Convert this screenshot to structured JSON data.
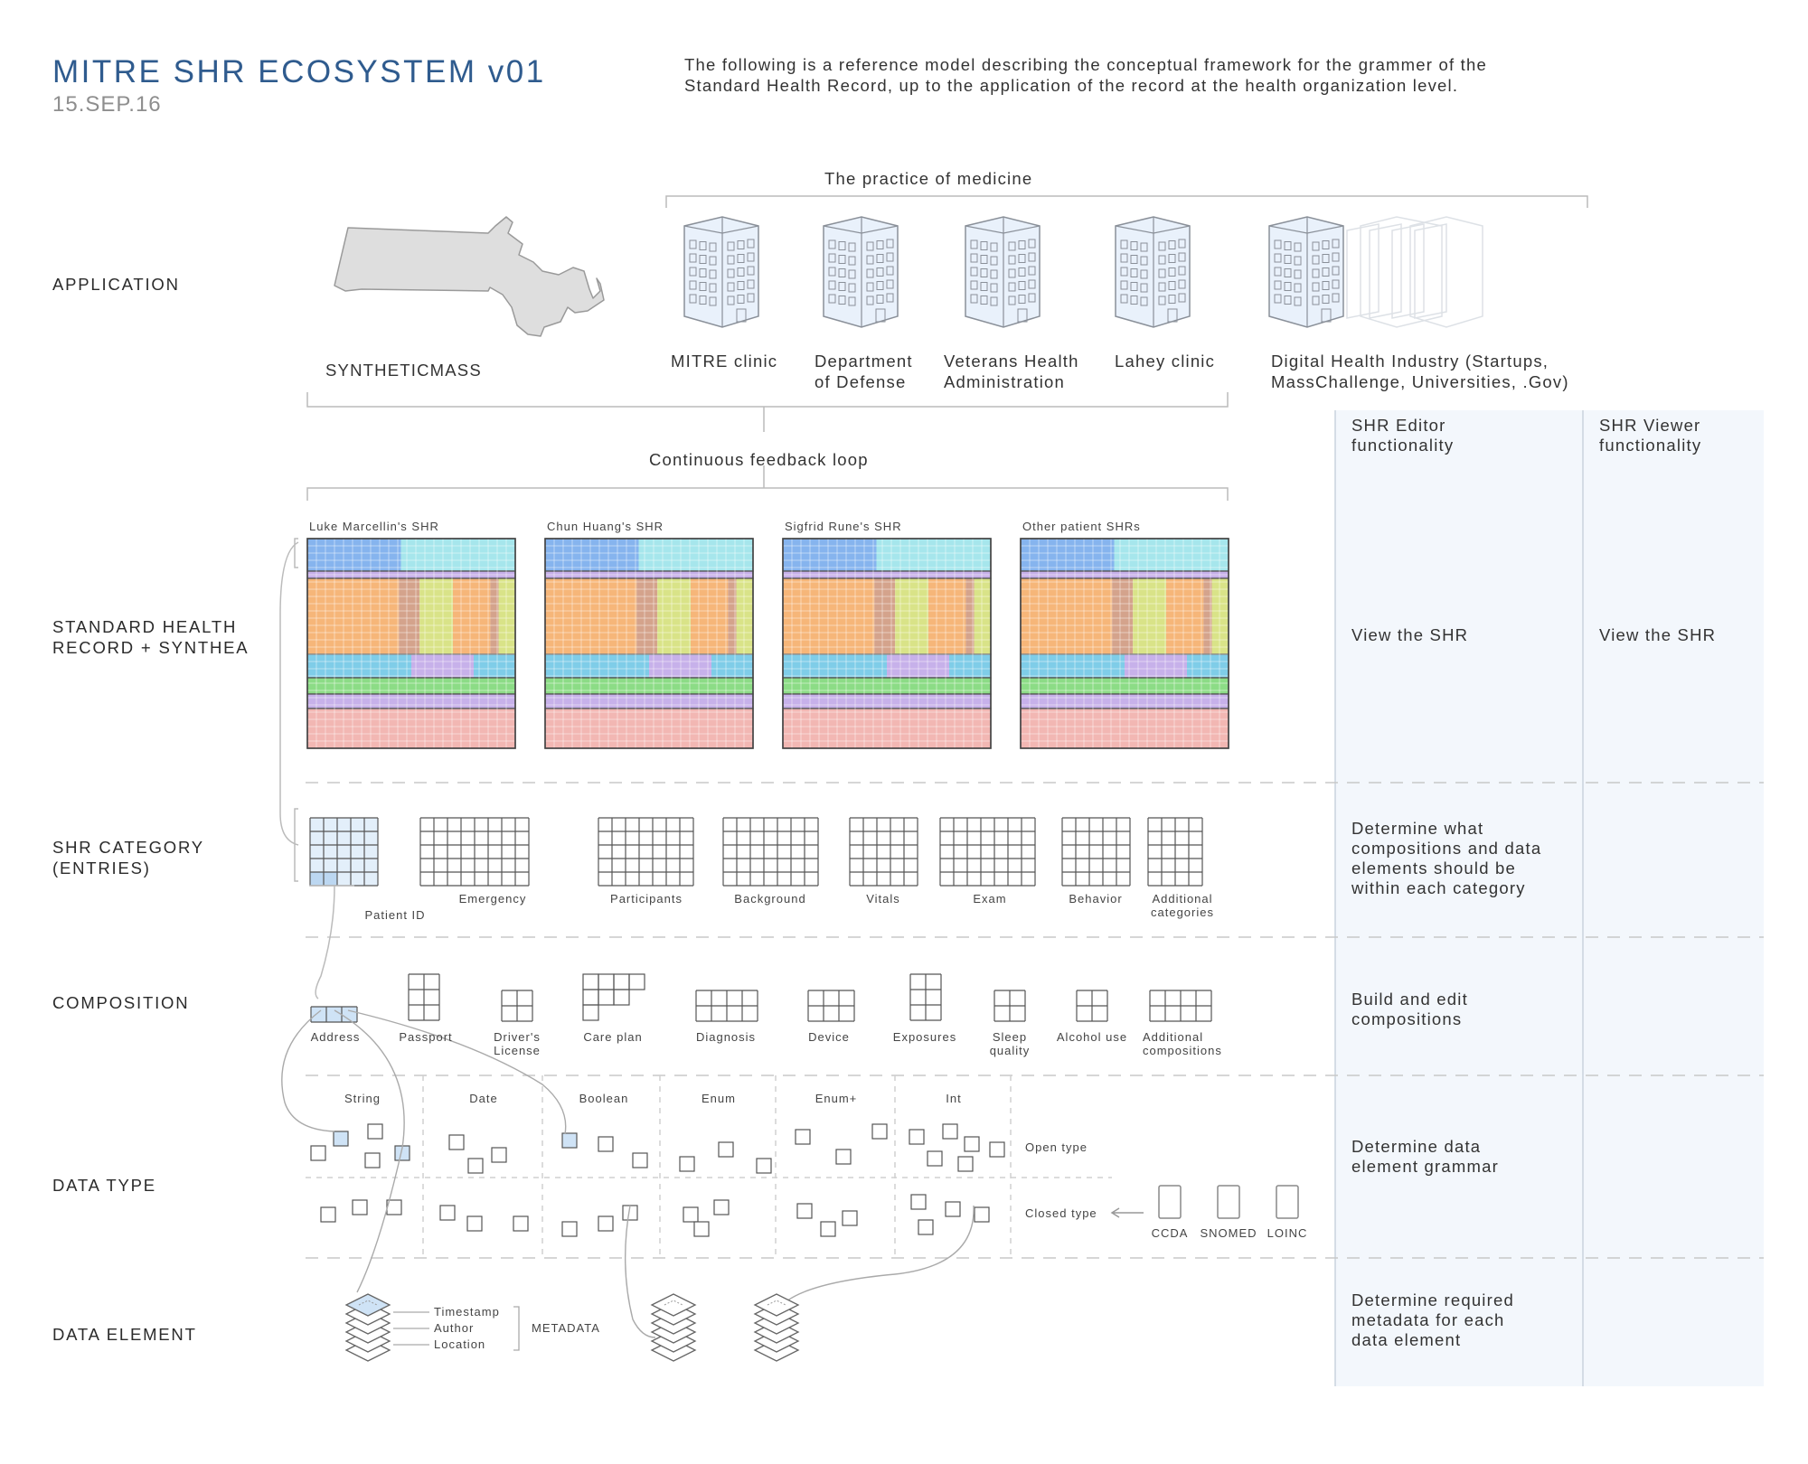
{
  "header": {
    "title_mitre": "MITRE",
    "title_rest": "SHR ECOSYSTEM v01",
    "date": "15.SEP.16",
    "intro_line1": "The following is a reference model describing the conceptual framework for the grammer of the",
    "intro_line2": "Standard Health Record, up to the application of the record at the health organization level."
  },
  "rows": {
    "application": "APPLICATION",
    "shr_line1": "STANDARD HEALTH",
    "shr_line2": "RECORD + SYNTHEA",
    "category_line1": "SHR CATEGORY",
    "category_line2": "(ENTRIES)",
    "composition": "COMPOSITION",
    "data_type": "DATA TYPE",
    "data_element": "DATA ELEMENT"
  },
  "application": {
    "practice": "The practice of medicine",
    "syntheticmass": "SYNTHETICMASS",
    "feedback": "Continuous feedback loop",
    "orgs": [
      {
        "line1": "MITRE clinic",
        "line2": ""
      },
      {
        "line1": "Department",
        "line2": "of Defense"
      },
      {
        "line1": "Veterans Health",
        "line2": "Administration"
      },
      {
        "line1": "Lahey clinic",
        "line2": ""
      },
      {
        "line1": "Digital Health Industry (Startups,",
        "line2": "MassChallenge, Universities, .Gov)"
      }
    ]
  },
  "shr_records": [
    "Luke Marcellin's SHR",
    "Chun Huang's SHR",
    "Sigfrid Rune's SHR",
    "Other patient SHRs"
  ],
  "categories": {
    "patient_id": "Patient ID",
    "emergency": "Emergency",
    "participants": "Participants",
    "background": "Background",
    "vitals": "Vitals",
    "exam": "Exam",
    "behavior": "Behavior",
    "additional_line1": "Additional",
    "additional_line2": "categories"
  },
  "compositions": {
    "address": "Address",
    "passport": "Passport",
    "drivers_line1": "Driver's",
    "drivers_line2": "License",
    "care_plan": "Care plan",
    "diagnosis": "Diagnosis",
    "device": "Device",
    "exposures": "Exposures",
    "sleep_line1": "Sleep",
    "sleep_line2": "quality",
    "alcohol": "Alcohol use",
    "additional_line1": "Additional",
    "additional_line2": "compositions"
  },
  "data_types": {
    "columns": [
      "String",
      "Date",
      "Boolean",
      "Enum",
      "Enum+",
      "Int"
    ],
    "open_type": "Open type",
    "closed_type": "Closed type",
    "standards": [
      "CCDA",
      "SNOMED",
      "LOINC"
    ]
  },
  "data_element": {
    "timestamp": "Timestamp",
    "author": "Author",
    "location": "Location",
    "metadata": "METADATA"
  },
  "panels": {
    "editor_line1": "SHR Editor",
    "editor_line2": "functionality",
    "viewer_line1": "SHR Viewer",
    "viewer_line2": "functionality",
    "view_editor": "View the SHR",
    "view_viewer": "View the SHR",
    "category_desc": [
      "Determine what",
      "compositions and data",
      "elements should be",
      "within each category"
    ],
    "composition_desc": [
      "Build and edit",
      "compositions"
    ],
    "datatype_desc": [
      "Determine data",
      "element grammar"
    ],
    "element_desc": [
      "Determine required",
      "metadata for each",
      "data element"
    ]
  },
  "colors": {
    "title_blue": "#2f5b8e",
    "panel_bg": "#f3f7fc",
    "highlight": "#cfe3f6",
    "band_blue": "#86b4ee",
    "band_cyan": "#a6e6ec",
    "band_purple": "#c7b1ea",
    "band_orange": "#f6b679",
    "band_brown": "#d4a38c",
    "band_lime": "#d9e388",
    "band_sky": "#7fcde8",
    "band_green": "#8cdc86",
    "band_pink": "#f2b7b3"
  }
}
